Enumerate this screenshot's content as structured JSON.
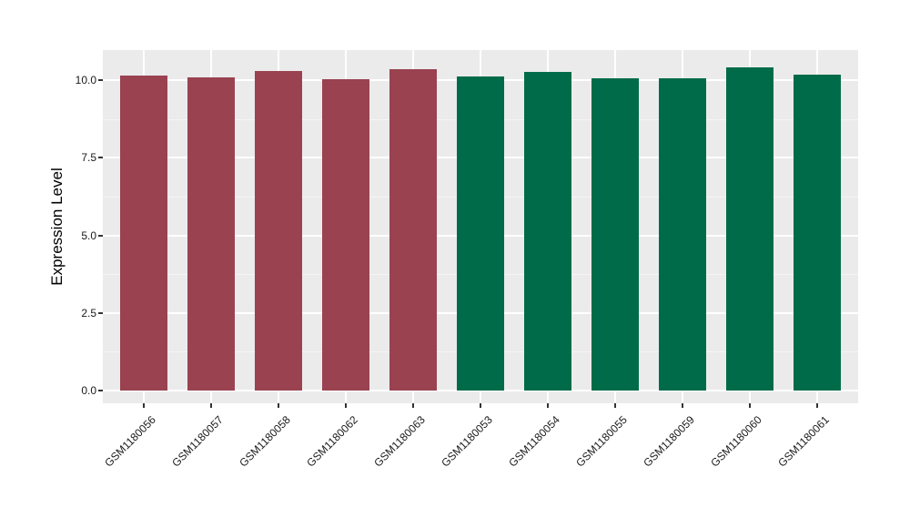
{
  "figure": {
    "background": "#FFFFFF",
    "panel_background": "#EBEBEB",
    "grid_major_color": "#FFFFFF",
    "grid_minor_color": "#F5F5F5",
    "axis_text_color": "#1A1A1A",
    "tick_mark_color": "#333333"
  },
  "chart_data": {
    "type": "bar",
    "title": "",
    "xlabel": "",
    "ylabel": "Expression Level",
    "categories": [
      "GSM1180056",
      "GSM1180057",
      "GSM1180058",
      "GSM1180062",
      "GSM1180063",
      "GSM1180053",
      "GSM1180054",
      "GSM1180055",
      "GSM1180059",
      "GSM1180060",
      "GSM1180061"
    ],
    "values": [
      10.16,
      10.08,
      10.31,
      10.03,
      10.35,
      10.12,
      10.27,
      10.05,
      10.05,
      10.41,
      10.19
    ],
    "bar_groups": [
      "maroon",
      "maroon",
      "maroon",
      "maroon",
      "maroon",
      "green",
      "green",
      "green",
      "green",
      "green",
      "green"
    ],
    "group_colors": {
      "maroon": "#9A4250",
      "green": "#006B48"
    },
    "bar_colors": [
      "#9A4250",
      "#9A4250",
      "#9A4250",
      "#9A4250",
      "#9A4250",
      "#006B48",
      "#006B48",
      "#006B48",
      "#006B48",
      "#006B48",
      "#006B48"
    ],
    "ytick_labels": [
      "0.0",
      "2.5",
      "5.0",
      "7.5",
      "10.0"
    ],
    "ytick_values": [
      0,
      2.5,
      5,
      7.5,
      10
    ],
    "ylim": [
      -0.41,
      10.97
    ],
    "x_tick_rotation_deg": 45,
    "grid": "horizontal major + minor, vertical major at category centers; white lines on gray panel",
    "legend": "none"
  }
}
